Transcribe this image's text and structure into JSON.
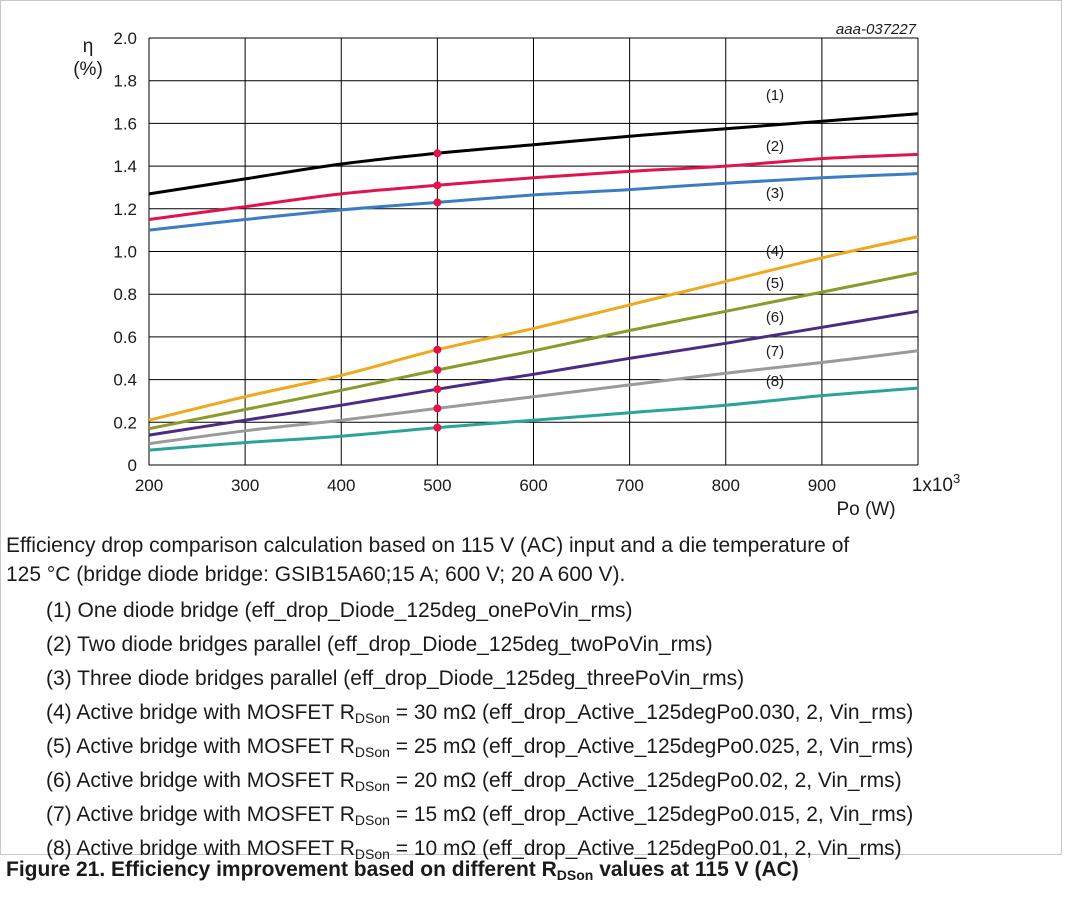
{
  "description": {
    "line1": "Efficiency drop comparison calculation based on 115 V (AC) input and a die temperature of",
    "line2": "125 °C (bridge diode bridge: GSIB15A60;15 A; 600 V; 20 A 600 V)."
  },
  "legend": [
    {
      "number": "(1)",
      "text": "One diode bridge (eff_drop_Diode_125deg_onePoVin_rms)"
    },
    {
      "number": "(2)",
      "text": "Two diode bridges parallel (eff_drop_Diode_125deg_twoPoVin_rms)"
    },
    {
      "number": "(3)",
      "text": "Three diode bridges parallel (eff_drop_Diode_125deg_threePoVin_rms)"
    },
    {
      "number": "(4)",
      "prefix": "Active bridge with MOSFET R",
      "sub": "DSon",
      "suffix": " = 30 mΩ (eff_drop_Active_125degPo0.030, 2, Vin_rms)"
    },
    {
      "number": "(5)",
      "prefix": "Active bridge with MOSFET R",
      "sub": "DSon",
      "suffix": " = 25 mΩ (eff_drop_Active_125degPo0.025, 2, Vin_rms)"
    },
    {
      "number": "(6)",
      "prefix": "Active bridge with MOSFET R",
      "sub": "DSon",
      "suffix": " = 20 mΩ (eff_drop_Active_125degPo0.02, 2, Vin_rms)"
    },
    {
      "number": "(7)",
      "prefix": "Active bridge with MOSFET R",
      "sub": "DSon",
      "suffix": " = 15 mΩ (eff_drop_Active_125degPo0.015, 2, Vin_rms)"
    },
    {
      "number": "(8)",
      "prefix": "Active bridge with MOSFET R",
      "sub": "DSon",
      "suffix": " = 10 mΩ (eff_drop_Active_125degPo0.01, 2, Vin_rms)"
    }
  ],
  "caption": {
    "prefix": "Figure 21.  Efficiency improvement based on different R",
    "sub": "DSon",
    "suffix": "  values at 115 V (AC)"
  },
  "chart_data": {
    "type": "line",
    "figure_id": "aaa-037227",
    "ylabel_symbol": "η",
    "ylabel_unit": "(%)",
    "xlabel": "Po (W)",
    "x_multiplier_base": "1x10",
    "x_multiplier_exp": "3",
    "xlim": [
      200,
      1000
    ],
    "ylim": [
      0,
      2.0
    ],
    "grid": true,
    "x_ticks": [
      "200",
      "300",
      "400",
      "500",
      "600",
      "700",
      "800",
      "900"
    ],
    "y_ticks": [
      "0",
      "0.2",
      "0.4",
      "0.6",
      "0.8",
      "1.0",
      "1.2",
      "1.4",
      "1.6",
      "1.8",
      "2.0"
    ],
    "marker_x": 500,
    "series": [
      {
        "name": "(1)",
        "color": "#000000",
        "label_at": [
          850,
          1.71
        ],
        "x": [
          200,
          300,
          400,
          500,
          600,
          700,
          800,
          900,
          1000
        ],
        "values": [
          1.27,
          1.34,
          1.41,
          1.46,
          1.5,
          1.54,
          1.575,
          1.61,
          1.645
        ]
      },
      {
        "name": "(2)",
        "color": "#e0134a",
        "label_at": [
          850,
          1.47
        ],
        "x": [
          200,
          300,
          400,
          500,
          600,
          700,
          800,
          900,
          1000
        ],
        "values": [
          1.15,
          1.21,
          1.27,
          1.31,
          1.345,
          1.375,
          1.4,
          1.435,
          1.455
        ]
      },
      {
        "name": "(3)",
        "color": "#3b7cc4",
        "label_at": [
          850,
          1.25
        ],
        "x": [
          200,
          300,
          400,
          500,
          600,
          700,
          800,
          900,
          1000
        ],
        "values": [
          1.1,
          1.15,
          1.195,
          1.23,
          1.265,
          1.29,
          1.32,
          1.345,
          1.365
        ]
      },
      {
        "name": "(4)",
        "color": "#f0a81c",
        "label_at": [
          850,
          0.98
        ],
        "x": [
          200,
          300,
          400,
          500,
          600,
          700,
          800,
          900,
          1000
        ],
        "values": [
          0.21,
          0.32,
          0.42,
          0.54,
          0.64,
          0.75,
          0.86,
          0.97,
          1.07
        ]
      },
      {
        "name": "(5)",
        "color": "#8c9a2a",
        "label_at": [
          850,
          0.83
        ],
        "x": [
          200,
          300,
          400,
          500,
          600,
          700,
          800,
          900,
          1000
        ],
        "values": [
          0.17,
          0.26,
          0.35,
          0.445,
          0.535,
          0.63,
          0.72,
          0.81,
          0.9
        ]
      },
      {
        "name": "(6)",
        "color": "#4b2c85",
        "label_at": [
          850,
          0.67
        ],
        "x": [
          200,
          300,
          400,
          500,
          600,
          700,
          800,
          900,
          1000
        ],
        "values": [
          0.14,
          0.21,
          0.28,
          0.355,
          0.425,
          0.5,
          0.57,
          0.645,
          0.72
        ]
      },
      {
        "name": "(7)",
        "color": "#9a9a9a",
        "label_at": [
          850,
          0.51
        ],
        "x": [
          200,
          300,
          400,
          500,
          600,
          700,
          800,
          900,
          1000
        ],
        "values": [
          0.1,
          0.16,
          0.21,
          0.265,
          0.32,
          0.375,
          0.43,
          0.48,
          0.535
        ]
      },
      {
        "name": "(8)",
        "color": "#2aa39a",
        "label_at": [
          850,
          0.37
        ],
        "x": [
          200,
          300,
          400,
          500,
          600,
          700,
          800,
          900,
          1000
        ],
        "values": [
          0.07,
          0.105,
          0.135,
          0.175,
          0.21,
          0.245,
          0.28,
          0.325,
          0.36
        ]
      }
    ],
    "marker_color": "#e0134a"
  }
}
